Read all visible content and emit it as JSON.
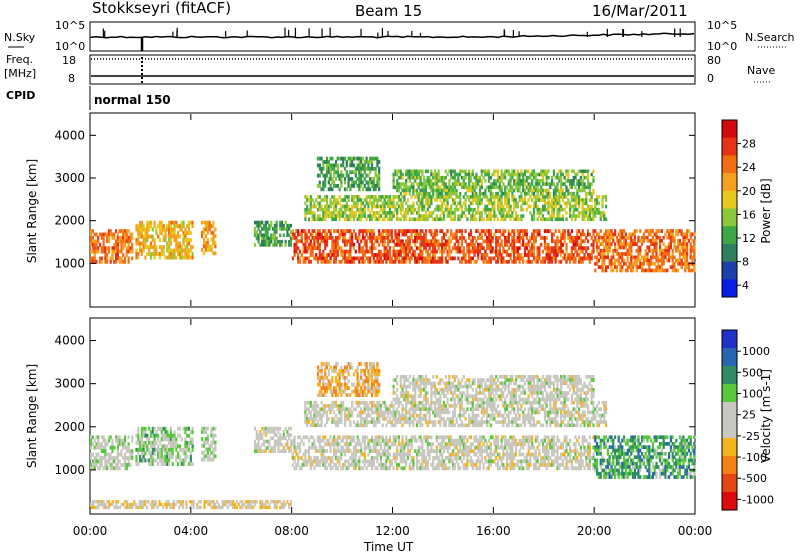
{
  "header": {
    "station": "Stokkseyri (fitACF)",
    "beam": "Beam 15",
    "date": "16/Mar/2011"
  },
  "top_panels": {
    "nsky_label": "N.Sky",
    "nsky_ticks": [
      "10^5",
      "10^0"
    ],
    "nsearch_label": "N.Search",
    "freq_label": "Freq.",
    "freq_unit": "[MHz]",
    "freq_ticks": [
      "18",
      "8"
    ],
    "nave_ticks": [
      "80",
      "0"
    ],
    "nave_label": "Nave",
    "cpid_label": "CPID",
    "cpid_value": "normal 150"
  },
  "panel_power": {
    "ylabel": "Slant Range [km]",
    "yticks": [
      "4000",
      "3000",
      "2000",
      "1000"
    ],
    "cbar_label": "Power [dB]",
    "cbar_ticks": [
      "28",
      "24",
      "20",
      "16",
      "12",
      "8",
      "4"
    ],
    "colors": [
      "#0a1ee6",
      "#1c3fa8",
      "#2f7f5a",
      "#3fa646",
      "#8cc83c",
      "#e6c81e",
      "#f5a01e",
      "#f26e14",
      "#e83214",
      "#d20a0a"
    ]
  },
  "panel_velocity": {
    "ylabel": "Slant Range [km]",
    "yticks": [
      "4000",
      "3000",
      "2000",
      "1000"
    ],
    "cbar_label": "Velocity [m s-1]",
    "cbar_ticks": [
      "1000",
      "500",
      "100",
      "25",
      "-25",
      "-100",
      "-500",
      "-1000"
    ],
    "colors": [
      "#1e32c8",
      "#2864b4",
      "#2f8c64",
      "#5ac83c",
      "#c8c8c0",
      "#c8c8c0",
      "#f5b41e",
      "#f58214",
      "#e64614",
      "#dc0a0a"
    ]
  },
  "xaxis": {
    "label": "Time UT",
    "ticks": [
      "00:00",
      "04:00",
      "08:00",
      "12:00",
      "16:00",
      "20:00",
      "00:00"
    ]
  },
  "chart_data": [
    {
      "type": "heatmap",
      "title": "Power",
      "xlabel": "Time UT",
      "ylabel": "Slant Range [km]",
      "xlim": [
        0,
        24
      ],
      "ylim": [
        0,
        4500
      ],
      "cbar_range": [
        0,
        30
      ],
      "cbar_unit": "dB",
      "regions": [
        {
          "t0": 0.0,
          "t1": 1.7,
          "r0": 1000,
          "r1": 1800,
          "level": 22
        },
        {
          "t0": 1.8,
          "t1": 4.1,
          "r0": 1100,
          "r1": 2000,
          "level": 18
        },
        {
          "t0": 4.4,
          "t1": 5.0,
          "r0": 1200,
          "r1": 2000,
          "level": 20
        },
        {
          "t0": 6.5,
          "t1": 8.0,
          "r0": 1400,
          "r1": 2000,
          "level": 10
        },
        {
          "t0": 8.0,
          "t1": 20.0,
          "r0": 1000,
          "r1": 1800,
          "level": 24
        },
        {
          "t0": 8.5,
          "t1": 20.5,
          "r0": 2000,
          "r1": 2600,
          "level": 14
        },
        {
          "t0": 9.0,
          "t1": 11.5,
          "r0": 2700,
          "r1": 3500,
          "level": 10
        },
        {
          "t0": 12.0,
          "t1": 20.0,
          "r0": 2600,
          "r1": 3200,
          "level": 12
        },
        {
          "t0": 20.0,
          "t1": 24.0,
          "r0": 800,
          "r1": 1800,
          "level": 22
        }
      ]
    },
    {
      "type": "heatmap",
      "title": "Velocity",
      "xlabel": "Time UT",
      "ylabel": "Slant Range [km]",
      "xlim": [
        0,
        24
      ],
      "ylim": [
        0,
        4500
      ],
      "cbar_range": [
        -1000,
        1000
      ],
      "cbar_unit": "m s-1",
      "regions": [
        {
          "t0": 0.0,
          "t1": 1.7,
          "r0": 1000,
          "r1": 1800,
          "level": 100
        },
        {
          "t0": 1.8,
          "t1": 4.1,
          "r0": 1100,
          "r1": 2000,
          "level": 200
        },
        {
          "t0": 4.4,
          "t1": 5.0,
          "r0": 1200,
          "r1": 2000,
          "level": 100
        },
        {
          "t0": 6.5,
          "t1": 8.0,
          "r0": 1400,
          "r1": 2000,
          "level": 0
        },
        {
          "t0": 8.0,
          "t1": 20.0,
          "r0": 1000,
          "r1": 1800,
          "level": 0
        },
        {
          "t0": 8.5,
          "t1": 20.5,
          "r0": 2000,
          "r1": 2600,
          "level": 0
        },
        {
          "t0": 9.0,
          "t1": 11.5,
          "r0": 2700,
          "r1": 3500,
          "level": -300
        },
        {
          "t0": 12.0,
          "t1": 20.0,
          "r0": 2600,
          "r1": 3200,
          "level": 0
        },
        {
          "t0": 20.0,
          "t1": 24.0,
          "r0": 800,
          "r1": 1800,
          "level": 400
        },
        {
          "t0": 0.0,
          "t1": 8.0,
          "r0": 100,
          "r1": 300,
          "level": -150
        }
      ]
    }
  ]
}
